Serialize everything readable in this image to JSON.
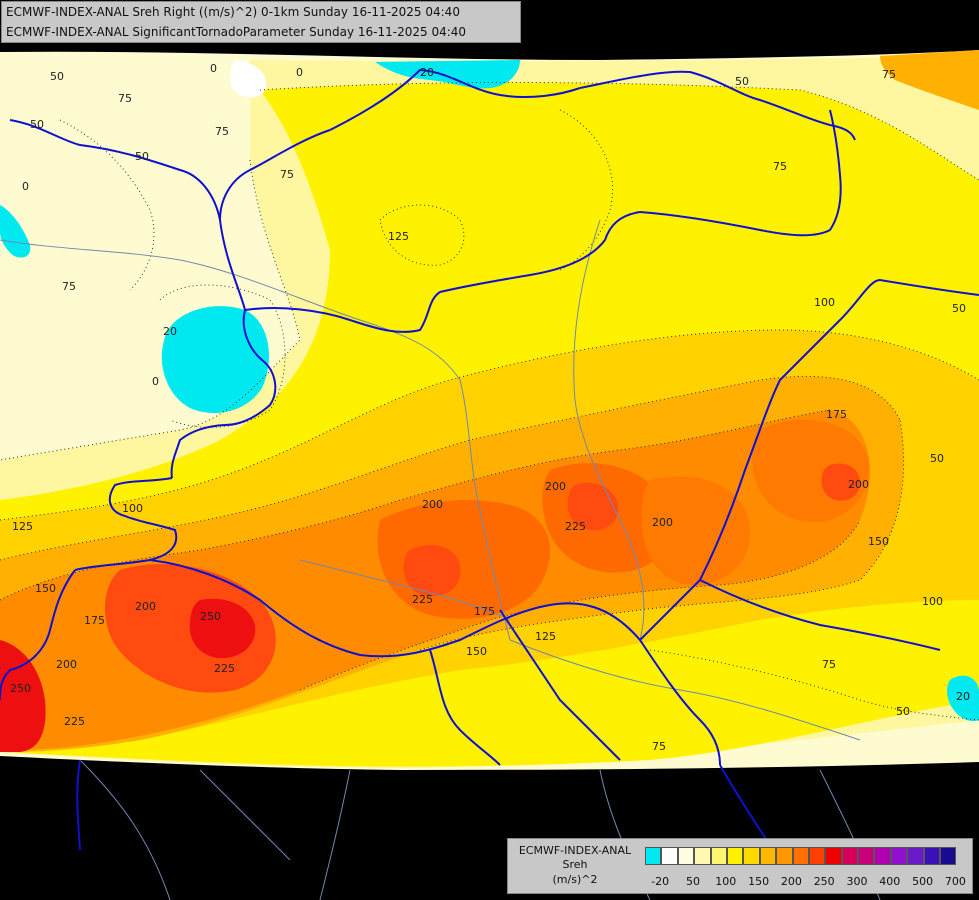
{
  "header": {
    "title_line_1": "ECMWF-INDEX-ANAL Sreh Right ((m/s)^2) 0-1km Sunday 16-11-2025 04:40",
    "title_line_2": "ECMWF-INDEX-ANAL SignificantTornadoParameter Sunday 16-11-2025 04:40"
  },
  "legend": {
    "name_line_1": "ECMWF-INDEX-ANAL",
    "name_line_2": "Sreh",
    "unit": "(m/s)^2",
    "colors": [
      "#00e8f0",
      "#ffffff",
      "#fffde0",
      "#fff8b0",
      "#fff570",
      "#fff000",
      "#ffd800",
      "#ffb800",
      "#ff9800",
      "#ff7000",
      "#ff4000",
      "#ee0000",
      "#d8005a",
      "#c8007a",
      "#b000b0",
      "#9010d0",
      "#6a1ac8",
      "#3a10b8",
      "#1a0a90"
    ],
    "tick_labels": [
      "-20",
      "50",
      "100",
      "150",
      "200",
      "250",
      "300",
      "400",
      "500",
      "700"
    ]
  },
  "map": {
    "contour_labels": [
      "0",
      "0",
      "20",
      "50",
      "75",
      "50",
      "50",
      "75",
      "75",
      "50",
      "0",
      "75",
      "75",
      "125",
      "20",
      "0",
      "100",
      "50",
      "75",
      "175",
      "50",
      "125",
      "100",
      "200",
      "200",
      "225",
      "200",
      "200",
      "150",
      "150",
      "175",
      "200",
      "250",
      "225",
      "225",
      "175",
      "125",
      "150",
      "200",
      "250",
      "225",
      "100",
      "75",
      "20",
      "50",
      "75"
    ],
    "fill_colors": {
      "background": "#000000",
      "cream": "#fffbd0",
      "light_yellow": "#fff7a0",
      "yellow": "#fff200",
      "gold": "#ffd200",
      "orange_light": "#ffb000",
      "orange": "#ff8c00",
      "orange_dark": "#ff6a00",
      "red_orange": "#ff4a10",
      "red": "#ee1010",
      "magenta": "#d00060",
      "cyan": "#00e8f0",
      "white": "#ffffff",
      "border": "#1010d0",
      "river": "#7088b0"
    }
  }
}
